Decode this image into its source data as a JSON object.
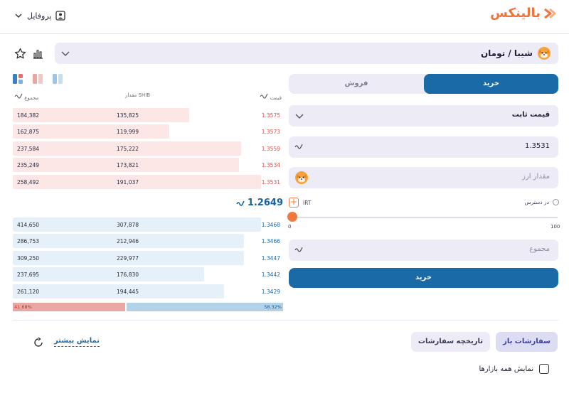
{
  "header": {
    "profile_label": "پروفایل",
    "logo_text": "بالینکس",
    "brand_color": "#f0753b"
  },
  "market": {
    "pair_label": "شیبا / تومان",
    "coin_icon": "shiba-coin-icon"
  },
  "orderbook": {
    "headers": {
      "price": "قیمت",
      "amount": "مقدار SHIB",
      "total": "مجموع"
    },
    "asks": [
      {
        "price": "1.3575",
        "amount": "135,825",
        "total": "184,382",
        "depth": 0.71
      },
      {
        "price": "1.3573",
        "amount": "119,999",
        "total": "162,875",
        "depth": 0.63
      },
      {
        "price": "1.3559",
        "amount": "175,222",
        "total": "237,584",
        "depth": 0.92
      },
      {
        "price": "1.3534",
        "amount": "173,821",
        "total": "235,249",
        "depth": 0.91
      },
      {
        "price": "1.3531",
        "amount": "191,037",
        "total": "258,492",
        "depth": 1.0
      }
    ],
    "last_price": "1.2649",
    "bids": [
      {
        "price": "1.3468",
        "amount": "307,878",
        "total": "414,650",
        "depth": 1.0
      },
      {
        "price": "1.3466",
        "amount": "212,946",
        "total": "286,753",
        "depth": 0.93
      },
      {
        "price": "1.3447",
        "amount": "229,977",
        "total": "309,250",
        "depth": 0.93
      },
      {
        "price": "1.3442",
        "amount": "176,830",
        "total": "237,695",
        "depth": 0.77
      },
      {
        "price": "1.3429",
        "amount": "194,445",
        "total": "261,120",
        "depth": 0.85
      }
    ],
    "sell_ratio": "41.68%",
    "buy_ratio": "58.32%",
    "sell_ratio_value": 0.4168
  },
  "form": {
    "buy_tab": "خرید",
    "sell_tab": "فروش",
    "order_type": "قیمت ثابت",
    "price_value": "1.3531",
    "amount_placeholder": "مقدار ارز",
    "available_label": "در دسترس",
    "currency_unit": "IRT",
    "slider_min": "0",
    "slider_max": "100",
    "slider_value": 0,
    "total_placeholder": "مجموع",
    "submit_label": "خرید"
  },
  "orders": {
    "open_orders_tab": "سفارشات باز",
    "history_tab": "تاریخچه سفارشات",
    "show_more": "نمایش بیشتر",
    "show_all_markets": "نمایش همه بازارها"
  }
}
